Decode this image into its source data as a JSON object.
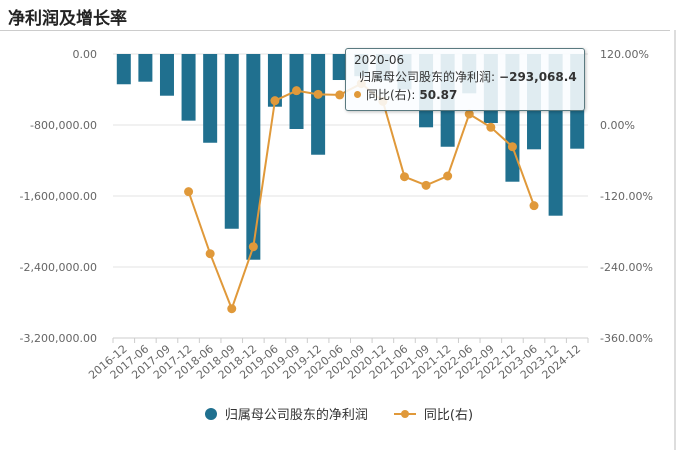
{
  "title": "净利润及增长率",
  "chart_data": {
    "type": "bar+line",
    "categories": [
      "2016-12",
      "2017-06",
      "2017-09",
      "2017-12",
      "2018-06",
      "2018-09",
      "2018-12",
      "2019-06",
      "2019-09",
      "2019-12",
      "2020-06",
      "2020-09",
      "2020-12",
      "2021-06",
      "2021-09",
      "2021-12",
      "2022-06",
      "2022-09",
      "2022-12",
      "2023-06",
      "2023-12",
      "2024-12"
    ],
    "series": [
      {
        "name": "归属母公司股东的净利润",
        "type": "bar",
        "axis": "left",
        "color": "#20708f",
        "values": [
          -341000,
          -312000,
          -470000,
          -751000,
          -1000000,
          -1969000,
          -2318000,
          -594000,
          -845000,
          -1135000,
          -293068.4,
          -250000,
          -300000,
          -400000,
          -826000,
          -1045000,
          -443000,
          -778000,
          -1439000,
          -1074000,
          -1822000,
          -1067000
        ]
      },
      {
        "name": "同比(右)",
        "type": "line",
        "axis": "right",
        "color": "#e0993a",
        "values": [
          null,
          null,
          null,
          -112.7,
          -217.5,
          -310.5,
          -205.7,
          41.1,
          58.0,
          51.8,
          50.87,
          70,
          40,
          -87.4,
          -102,
          -86.2,
          18.6,
          -3.9,
          -36.7,
          -136.3,
          null,
          null
        ]
      }
    ],
    "y_left": {
      "range": [
        -3200000,
        0
      ],
      "ticks": [
        "0.00",
        "-800,000.00",
        "-1,600,000.00",
        "-2,400,000.00",
        "-3,200,000.00"
      ]
    },
    "y_right": {
      "range": [
        -360,
        120
      ],
      "ticks": [
        "120.00%",
        "0.00%",
        "-120.00%",
        "-240.00%",
        "-360.00%"
      ]
    },
    "grid": true,
    "legend_placement": "bottom",
    "tooltip": {
      "category": "2020-06",
      "series1_label": "归属母公司股东的净利润:",
      "series1_value": "−293,068.4",
      "series2_label": "同比(右):",
      "series2_value": "50.87"
    }
  }
}
